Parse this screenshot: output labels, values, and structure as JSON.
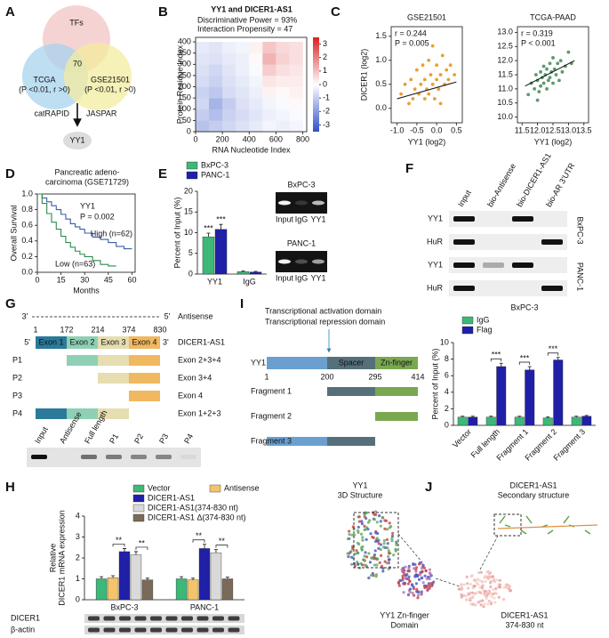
{
  "panel_labels": [
    "A",
    "B",
    "C",
    "D",
    "E",
    "F",
    "G",
    "H",
    "I",
    "J"
  ],
  "venn": {
    "sets": [
      {
        "name": "TFs",
        "color": "#f3c4c4"
      },
      {
        "name": "TCGA",
        "note": "(P <0.01, r >0)",
        "color": "#a8d3ee"
      },
      {
        "name": "GSE21501",
        "note": "(P <0.01, r >0)",
        "color": "#f3ec9e"
      }
    ],
    "overlap": "70",
    "left_source": "catRAPID",
    "right_source": "JASPAR",
    "result": "YY1"
  },
  "chart_data": [
    {
      "type": "heatmap",
      "title": "YY1 and DICER1-AS1",
      "subtitle": [
        "Discriminative Power = 93%",
        "Interaction Propensity = 47"
      ],
      "xlabel": "RNA Nucleotide Index",
      "ylabel": "Protein Residue Index",
      "x_bins": [
        0,
        100,
        200,
        300,
        400,
        500,
        600,
        700,
        800
      ],
      "y_bins": [
        0,
        50,
        100,
        150,
        200,
        250,
        300,
        350,
        400
      ],
      "values": [
        [
          -1.2,
          -1.0,
          -0.8,
          -0.6,
          -0.4,
          -0.2,
          -0.3,
          -0.2
        ],
        [
          -1.0,
          -1.3,
          -0.9,
          -0.7,
          -0.5,
          -0.3,
          -0.2,
          -0.1
        ],
        [
          -0.8,
          -1.5,
          -1.0,
          -0.6,
          -0.4,
          -0.2,
          -0.1,
          0.1
        ],
        [
          -0.9,
          -1.1,
          -0.7,
          -0.5,
          -0.3,
          0.2,
          0.1,
          0.2
        ],
        [
          -0.7,
          -0.9,
          -0.6,
          -0.4,
          -0.2,
          0.4,
          0.3,
          0.3
        ],
        [
          -0.6,
          -0.8,
          -0.5,
          -0.3,
          -0.1,
          0.8,
          0.5,
          0.4
        ],
        [
          -0.5,
          -0.6,
          -0.4,
          -0.3,
          0.1,
          1.2,
          0.7,
          0.5
        ],
        [
          -0.4,
          -0.5,
          -0.3,
          -0.2,
          0.2,
          0.9,
          0.6,
          0.5
        ]
      ],
      "xlim": [
        0,
        830
      ],
      "xticks": [
        0,
        200,
        400,
        600,
        800
      ],
      "ylim": [
        0,
        420
      ],
      "yticks": [
        0,
        50,
        100,
        150,
        200,
        250,
        300,
        350,
        400
      ],
      "zlim": [
        -3.5,
        3.5
      ],
      "zticks": [
        -3,
        -2,
        -1,
        0,
        1,
        2,
        3
      ]
    },
    {
      "type": "scatter",
      "title": "GSE21501",
      "xlabel": "YY1 (log2)",
      "ylabel": "DICER1 (log2)",
      "color": "#e8a030",
      "annotations": [
        "r = 0.244",
        "P = 0.005"
      ],
      "x": [
        -0.9,
        -0.8,
        -0.7,
        -0.65,
        -0.6,
        -0.55,
        -0.5,
        -0.45,
        -0.4,
        -0.35,
        -0.3,
        -0.3,
        -0.25,
        -0.2,
        -0.2,
        -0.15,
        -0.1,
        -0.1,
        -0.05,
        0.0,
        0.0,
        0.05,
        0.1,
        0.1,
        0.15,
        0.2,
        0.25,
        0.3,
        0.35,
        0.45
      ],
      "values": [
        0.3,
        0.5,
        0.1,
        0.6,
        0.2,
        0.4,
        0.8,
        0.3,
        0.5,
        0.9,
        0.2,
        0.6,
        0.4,
        1.0,
        0.3,
        0.7,
        0.5,
        1.3,
        0.2,
        0.6,
        0.9,
        0.4,
        0.7,
        0.1,
        1.1,
        0.5,
        0.8,
        0.6,
        0.9,
        0.7
      ],
      "trend_line": {
        "x": [
          -1.0,
          0.5
        ],
        "y": [
          0.2,
          0.55
        ]
      },
      "xlim": [
        -1.15,
        0.65
      ],
      "xticks": [
        {
          "value": -1,
          "label": "-1.0"
        },
        -0.5,
        {
          "value": 0,
          "label": "0.0"
        },
        0.5
      ],
      "ylim": [
        -0.3,
        1.7
      ],
      "yticks": [
        {
          "value": 0,
          "label": "0.0"
        },
        0.5,
        {
          "value": 1,
          "label": "1.0"
        },
        1.5
      ]
    },
    {
      "type": "scatter",
      "title": "TCGA-PAAD",
      "xlabel": "YY1 (log2)",
      "color": "#5a9a6a",
      "annotations": [
        "r = 0.319",
        "P < 0.001"
      ],
      "x": [
        11.7,
        11.8,
        11.9,
        11.95,
        12.0,
        12.05,
        12.1,
        12.1,
        12.15,
        12.2,
        12.2,
        12.25,
        12.3,
        12.3,
        12.35,
        12.4,
        12.4,
        12.45,
        12.5,
        12.5,
        12.55,
        12.6,
        12.65,
        12.7,
        12.75,
        12.8,
        12.9,
        13.0,
        13.1,
        12.0
      ],
      "values": [
        10.8,
        11.2,
        11.0,
        11.5,
        11.3,
        10.9,
        11.6,
        11.1,
        11.4,
        11.8,
        11.2,
        11.5,
        11.0,
        11.7,
        11.3,
        11.9,
        11.4,
        11.6,
        12.1,
        11.2,
        11.7,
        11.5,
        11.9,
        11.3,
        12.0,
        11.6,
        11.8,
        12.3,
        11.9,
        10.6
      ],
      "trend_line": {
        "x": [
          11.6,
          13.2
        ],
        "y": [
          11.1,
          12.0
        ]
      },
      "xlim": [
        11.35,
        13.65
      ],
      "xticks": [
        11.5,
        {
          "value": 12,
          "label": "12.0"
        },
        12.5,
        {
          "value": 13,
          "label": "13.0"
        },
        13.5
      ],
      "ylim": [
        9.8,
        13.2
      ],
      "yticks": [
        {
          "value": 10,
          "label": "10.0"
        },
        10.5,
        {
          "value": 11,
          "label": "11.0"
        },
        11.5,
        {
          "value": 12,
          "label": "12.0"
        },
        12.5,
        {
          "value": 13,
          "label": "13.0"
        }
      ]
    },
    {
      "type": "line",
      "step": true,
      "title": [
        "Pancreatic adeno-",
        "carcinoma (GSE71729)"
      ],
      "xlabel": "Months",
      "ylabel": "Overall Survival",
      "annotations": [
        "YY1",
        "P = 0.002"
      ],
      "series": [
        {
          "name": "High (n=62)",
          "color": "#3a5ea8",
          "x": [
            0,
            3,
            6,
            9,
            12,
            15,
            18,
            21,
            24,
            27,
            30,
            35,
            40,
            45,
            50,
            55,
            60
          ],
          "values": [
            1.0,
            0.95,
            0.9,
            0.85,
            0.8,
            0.74,
            0.68,
            0.62,
            0.58,
            0.55,
            0.5,
            0.45,
            0.42,
            0.38,
            0.33,
            0.3,
            0.3
          ]
        },
        {
          "name": "Low (n=63)",
          "color": "#2e8a4e",
          "x": [
            0,
            3,
            6,
            9,
            12,
            15,
            18,
            21,
            24,
            27,
            30,
            35,
            40,
            45,
            50
          ],
          "values": [
            1.0,
            0.88,
            0.75,
            0.64,
            0.55,
            0.46,
            0.38,
            0.32,
            0.27,
            0.23,
            0.2,
            0.15,
            0.1,
            0.08,
            0.08
          ]
        }
      ],
      "xlim": [
        0,
        62
      ],
      "xticks": [
        0,
        15,
        30,
        45,
        60
      ],
      "ylim": [
        0,
        1.0
      ],
      "yticks": [
        {
          "value": 0,
          "label": "0.0"
        },
        0.2,
        0.4,
        0.6,
        0.8,
        {
          "value": 1,
          "label": "1.0"
        }
      ]
    },
    {
      "type": "bar",
      "ylabel": "Percent of Input (%)",
      "categories": [
        "YY1",
        "IgG"
      ],
      "series": [
        {
          "name": "BxPC-3",
          "color": "#3cb878",
          "values": [
            9.0,
            0.6
          ],
          "errors": [
            0.9,
            0.15
          ],
          "significance": [
            "***",
            null
          ]
        },
        {
          "name": "PANC-1",
          "color": "#1f1fa8",
          "values": [
            10.8,
            0.5
          ],
          "errors": [
            1.2,
            0.15
          ],
          "significance": [
            "***",
            null
          ]
        }
      ],
      "ylim": [
        0,
        20
      ],
      "yticks": [
        0,
        5,
        10,
        15,
        20
      ]
    },
    {
      "type": "bar",
      "ylabel": [
        "Relative",
        "DICER1 mRNA expression"
      ],
      "categories": [
        "BxPC-3",
        "PANC-1"
      ],
      "series": [
        {
          "name": "Vector",
          "color": "#3cb878",
          "values": [
            1.0,
            1.0
          ],
          "errors": [
            0.1,
            0.1
          ]
        },
        {
          "name": "Antisense",
          "color": "#f4c36b",
          "values": [
            1.05,
            0.95
          ],
          "errors": [
            0.1,
            0.08
          ]
        },
        {
          "name": "DICER1-AS1",
          "color": "#1f1fa8",
          "values": [
            2.3,
            2.45
          ],
          "errors": [
            0.15,
            0.2
          ]
        },
        {
          "name": "DICER1-AS1(374-830 nt)",
          "color": "#d9d9d9",
          "values": [
            2.15,
            2.25
          ],
          "errors": [
            0.15,
            0.15
          ]
        },
        {
          "name": "DICER1-AS1 Δ(374-830 nt)",
          "color": "#7a6a5a",
          "values": [
            0.95,
            1.0
          ],
          "errors": [
            0.08,
            0.08
          ]
        }
      ],
      "significance": [
        [
          "**",
          "**"
        ],
        [
          "**",
          "**"
        ]
      ],
      "ylim": [
        0,
        4
      ],
      "yticks": [
        0,
        1,
        2,
        3,
        4
      ]
    },
    {
      "type": "bar",
      "title": "BxPC-3",
      "ylabel": "Percent of Input (%)",
      "categories": [
        "Vector",
        "Full length",
        "Fragment 1",
        "Fragment 2",
        "Fragment 3"
      ],
      "series": [
        {
          "name": "IgG",
          "color": "#3cb878",
          "values": [
            1.0,
            1.0,
            1.0,
            0.9,
            1.0
          ],
          "errors": [
            0.1,
            0.1,
            0.1,
            0.1,
            0.1
          ]
        },
        {
          "name": "Flag",
          "color": "#1f1fa8",
          "values": [
            1.0,
            7.1,
            6.7,
            7.9,
            1.1
          ],
          "errors": [
            0.1,
            0.4,
            0.4,
            0.3,
            0.1
          ]
        }
      ],
      "significance": [
        null,
        "***",
        "***",
        "***",
        null
      ],
      "ylim": [
        0,
        10
      ],
      "yticks": [
        0,
        2,
        4,
        6,
        8,
        10
      ]
    }
  ],
  "gels_e": [
    {
      "title": "BxPC-3",
      "lanes": [
        "Input",
        "IgG",
        "YY1"
      ]
    },
    {
      "title": "PANC-1",
      "lanes": [
        "Input",
        "IgG",
        "YY1"
      ]
    }
  ],
  "blot_f": {
    "columns": [
      "Input",
      "bio-Antisense",
      "bio-DICER1-AS1",
      "bio-AR 3'UTR"
    ],
    "rows": [
      "YY1",
      "HuR",
      "YY1",
      "HuR"
    ],
    "cell_lines": [
      "BxPC-3",
      "PANC-1"
    ]
  },
  "constructs_g": {
    "antisense": {
      "end3": "3'",
      "end5": "5'",
      "label": "Antisense"
    },
    "positions": [
      1,
      172,
      214,
      374,
      830
    ],
    "transcript": {
      "end5": "5'",
      "end3": "3'",
      "label": "DICER1-AS1",
      "exons": [
        "Exon 1",
        "Exon 2",
        "Exon 3",
        "Exon 4"
      ]
    },
    "fragments": [
      {
        "name": "P1",
        "label": "Exon 2+3+4"
      },
      {
        "name": "P2",
        "label": "Exon 3+4"
      },
      {
        "name": "P3",
        "label": "Exon 4"
      },
      {
        "name": "P4",
        "label": "Exon 1+2+3"
      }
    ],
    "gel_lanes": [
      "Input",
      "Antisense",
      "Full length",
      "P1",
      "P2",
      "P3",
      "P4"
    ]
  },
  "blot_h": [
    "DICER1",
    "β-actin"
  ],
  "domains_i": {
    "annotations": [
      "Transcriptional activation domain",
      "Transcriptional repression domain"
    ],
    "protein": "YY1",
    "domains": [
      "Spacer",
      "Zn-finger"
    ],
    "positions": [
      1,
      200,
      295,
      414
    ],
    "fragments": [
      "Fragment 1",
      "Fragment 2",
      "Fragment 3"
    ]
  },
  "structure_j": {
    "left_title": [
      "YY1",
      "3D Structure"
    ],
    "right_title": [
      "DICER1-AS1",
      "Secondary structure"
    ],
    "left_caption": [
      "YY1 Zn-finger",
      "Domain"
    ],
    "right_caption": [
      "DICER1-AS1",
      "374-830 nt"
    ]
  }
}
